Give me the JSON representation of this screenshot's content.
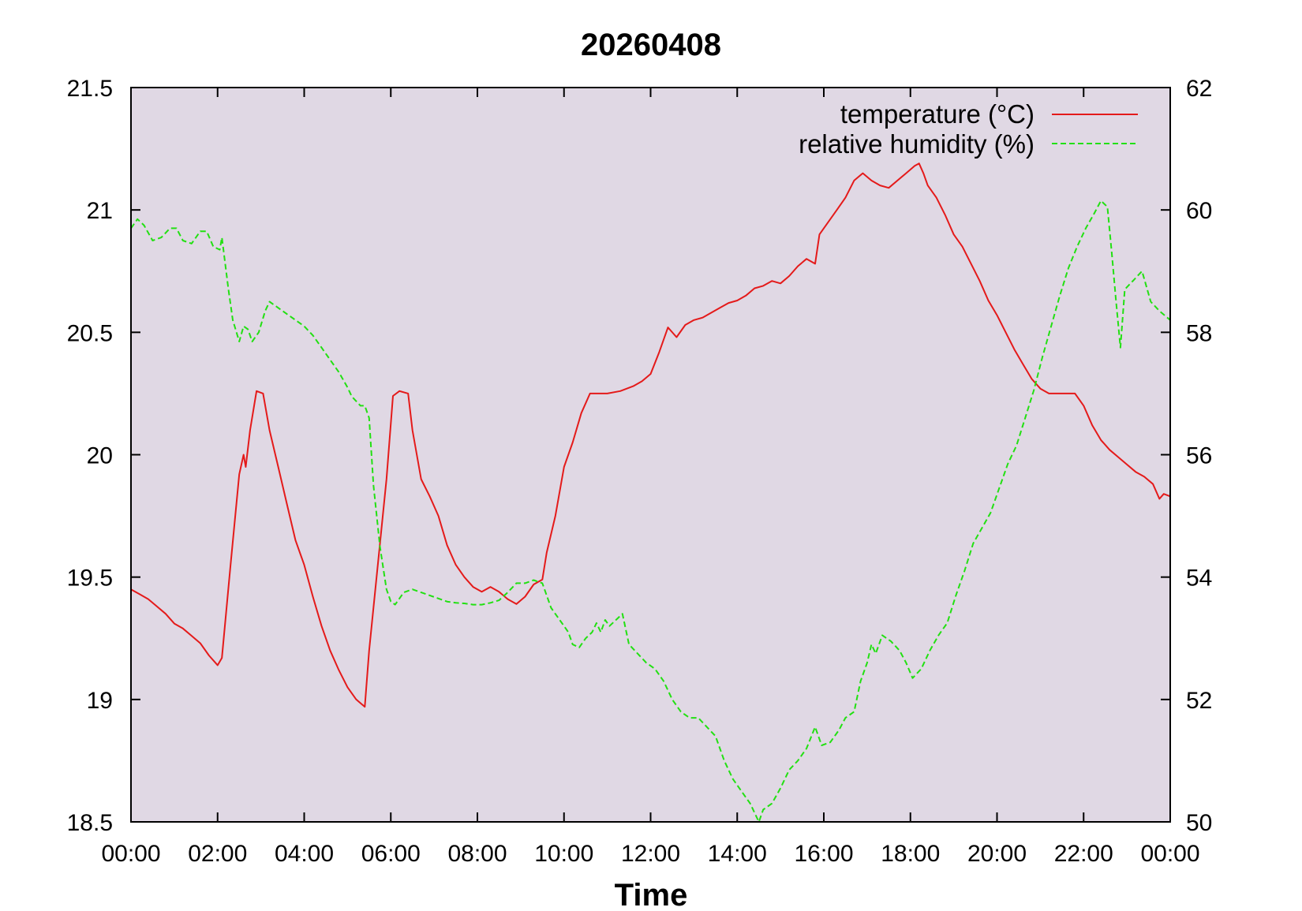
{
  "chart_data": {
    "type": "line",
    "title": "20260408",
    "xlabel": "Time",
    "ylabel": "",
    "y2label": "",
    "x_ticks": [
      "00:00",
      "02:00",
      "04:00",
      "06:00",
      "08:00",
      "10:00",
      "12:00",
      "14:00",
      "16:00",
      "18:00",
      "20:00",
      "22:00",
      "00:00"
    ],
    "xlim_hours": [
      0,
      24
    ],
    "ylim": [
      18.5,
      21.5
    ],
    "y_ticks": [
      "18.5",
      "19",
      "19.5",
      "20",
      "20.5",
      "21",
      "21.5"
    ],
    "y2lim": [
      50,
      62
    ],
    "y2_ticks": [
      "50",
      "52",
      "54",
      "56",
      "58",
      "60",
      "62"
    ],
    "grid": false,
    "legend_position": "top-right",
    "plot_background": "#e0d8e4",
    "series": [
      {
        "name": "temperature (°C)",
        "axis": "left",
        "color": "#e41a1a",
        "style": "solid",
        "points": [
          [
            0.0,
            19.45
          ],
          [
            0.2,
            19.43
          ],
          [
            0.4,
            19.41
          ],
          [
            0.6,
            19.38
          ],
          [
            0.8,
            19.35
          ],
          [
            1.0,
            19.31
          ],
          [
            1.2,
            19.29
          ],
          [
            1.4,
            19.26
          ],
          [
            1.6,
            19.23
          ],
          [
            1.8,
            19.18
          ],
          [
            2.0,
            19.14
          ],
          [
            2.1,
            19.17
          ],
          [
            2.3,
            19.55
          ],
          [
            2.5,
            19.92
          ],
          [
            2.6,
            20.0
          ],
          [
            2.65,
            19.95
          ],
          [
            2.75,
            20.1
          ],
          [
            2.9,
            20.26
          ],
          [
            3.05,
            20.25
          ],
          [
            3.2,
            20.1
          ],
          [
            3.4,
            19.95
          ],
          [
            3.6,
            19.8
          ],
          [
            3.8,
            19.65
          ],
          [
            4.0,
            19.55
          ],
          [
            4.2,
            19.42
          ],
          [
            4.4,
            19.3
          ],
          [
            4.6,
            19.2
          ],
          [
            4.8,
            19.12
          ],
          [
            5.0,
            19.05
          ],
          [
            5.2,
            19.0
          ],
          [
            5.4,
            18.97
          ],
          [
            5.5,
            19.2
          ],
          [
            5.7,
            19.55
          ],
          [
            5.9,
            19.9
          ],
          [
            6.05,
            20.24
          ],
          [
            6.2,
            20.26
          ],
          [
            6.4,
            20.25
          ],
          [
            6.5,
            20.1
          ],
          [
            6.7,
            19.9
          ],
          [
            6.9,
            19.83
          ],
          [
            7.1,
            19.75
          ],
          [
            7.3,
            19.63
          ],
          [
            7.5,
            19.55
          ],
          [
            7.7,
            19.5
          ],
          [
            7.9,
            19.46
          ],
          [
            8.1,
            19.44
          ],
          [
            8.3,
            19.46
          ],
          [
            8.5,
            19.44
          ],
          [
            8.7,
            19.41
          ],
          [
            8.9,
            19.39
          ],
          [
            9.1,
            19.42
          ],
          [
            9.3,
            19.47
          ],
          [
            9.5,
            19.49
          ],
          [
            9.6,
            19.6
          ],
          [
            9.8,
            19.75
          ],
          [
            10.0,
            19.95
          ],
          [
            10.2,
            20.05
          ],
          [
            10.4,
            20.17
          ],
          [
            10.6,
            20.25
          ],
          [
            10.8,
            20.25
          ],
          [
            11.0,
            20.25
          ],
          [
            11.3,
            20.26
          ],
          [
            11.6,
            20.28
          ],
          [
            11.8,
            20.3
          ],
          [
            12.0,
            20.33
          ],
          [
            12.2,
            20.42
          ],
          [
            12.4,
            20.52
          ],
          [
            12.6,
            20.48
          ],
          [
            12.8,
            20.53
          ],
          [
            13.0,
            20.55
          ],
          [
            13.2,
            20.56
          ],
          [
            13.4,
            20.58
          ],
          [
            13.6,
            20.6
          ],
          [
            13.8,
            20.62
          ],
          [
            14.0,
            20.63
          ],
          [
            14.2,
            20.65
          ],
          [
            14.4,
            20.68
          ],
          [
            14.6,
            20.69
          ],
          [
            14.8,
            20.71
          ],
          [
            15.0,
            20.7
          ],
          [
            15.2,
            20.73
          ],
          [
            15.4,
            20.77
          ],
          [
            15.6,
            20.8
          ],
          [
            15.8,
            20.78
          ],
          [
            15.9,
            20.9
          ],
          [
            16.1,
            20.95
          ],
          [
            16.3,
            21.0
          ],
          [
            16.5,
            21.05
          ],
          [
            16.7,
            21.12
          ],
          [
            16.9,
            21.15
          ],
          [
            17.1,
            21.12
          ],
          [
            17.3,
            21.1
          ],
          [
            17.5,
            21.09
          ],
          [
            17.7,
            21.12
          ],
          [
            17.9,
            21.15
          ],
          [
            18.1,
            21.18
          ],
          [
            18.2,
            21.19
          ],
          [
            18.3,
            21.15
          ],
          [
            18.4,
            21.1
          ],
          [
            18.6,
            21.05
          ],
          [
            18.8,
            20.98
          ],
          [
            19.0,
            20.9
          ],
          [
            19.2,
            20.85
          ],
          [
            19.4,
            20.78
          ],
          [
            19.6,
            20.71
          ],
          [
            19.8,
            20.63
          ],
          [
            20.0,
            20.57
          ],
          [
            20.2,
            20.5
          ],
          [
            20.4,
            20.43
          ],
          [
            20.6,
            20.37
          ],
          [
            20.8,
            20.31
          ],
          [
            21.0,
            20.27
          ],
          [
            21.2,
            20.25
          ],
          [
            21.5,
            20.25
          ],
          [
            21.8,
            20.25
          ],
          [
            22.0,
            20.2
          ],
          [
            22.2,
            20.12
          ],
          [
            22.4,
            20.06
          ],
          [
            22.6,
            20.02
          ],
          [
            22.8,
            19.99
          ],
          [
            23.0,
            19.96
          ],
          [
            23.2,
            19.93
          ],
          [
            23.4,
            19.91
          ],
          [
            23.6,
            19.88
          ],
          [
            23.75,
            19.82
          ],
          [
            23.85,
            19.84
          ],
          [
            24.0,
            19.83
          ]
        ]
      },
      {
        "name": "relative humidity (%)",
        "axis": "right",
        "color": "#22e012",
        "style": "dashed",
        "points": [
          [
            0.0,
            59.7
          ],
          [
            0.15,
            59.85
          ],
          [
            0.3,
            59.75
          ],
          [
            0.5,
            59.5
          ],
          [
            0.7,
            59.55
          ],
          [
            0.9,
            59.7
          ],
          [
            1.05,
            59.7
          ],
          [
            1.2,
            59.5
          ],
          [
            1.4,
            59.45
          ],
          [
            1.6,
            59.65
          ],
          [
            1.75,
            59.65
          ],
          [
            1.9,
            59.4
          ],
          [
            2.05,
            59.35
          ],
          [
            2.1,
            59.55
          ],
          [
            2.25,
            58.7
          ],
          [
            2.35,
            58.2
          ],
          [
            2.5,
            57.85
          ],
          [
            2.6,
            58.1
          ],
          [
            2.7,
            58.05
          ],
          [
            2.8,
            57.85
          ],
          [
            2.95,
            58.0
          ],
          [
            3.1,
            58.35
          ],
          [
            3.2,
            58.5
          ],
          [
            3.4,
            58.4
          ],
          [
            3.6,
            58.3
          ],
          [
            3.8,
            58.2
          ],
          [
            4.0,
            58.1
          ],
          [
            4.2,
            57.95
          ],
          [
            4.4,
            57.75
          ],
          [
            4.6,
            57.55
          ],
          [
            4.8,
            57.35
          ],
          [
            5.0,
            57.1
          ],
          [
            5.1,
            56.95
          ],
          [
            5.3,
            56.8
          ],
          [
            5.4,
            56.8
          ],
          [
            5.5,
            56.6
          ],
          [
            5.6,
            55.5
          ],
          [
            5.75,
            54.5
          ],
          [
            5.9,
            53.8
          ],
          [
            6.0,
            53.6
          ],
          [
            6.1,
            53.55
          ],
          [
            6.3,
            53.75
          ],
          [
            6.5,
            53.8
          ],
          [
            6.7,
            53.75
          ],
          [
            6.9,
            53.7
          ],
          [
            7.1,
            53.65
          ],
          [
            7.3,
            53.6
          ],
          [
            7.5,
            53.58
          ],
          [
            7.7,
            53.57
          ],
          [
            7.9,
            53.55
          ],
          [
            8.1,
            53.55
          ],
          [
            8.3,
            53.58
          ],
          [
            8.5,
            53.62
          ],
          [
            8.7,
            53.75
          ],
          [
            8.9,
            53.9
          ],
          [
            9.1,
            53.9
          ],
          [
            9.3,
            53.95
          ],
          [
            9.5,
            53.9
          ],
          [
            9.6,
            53.7
          ],
          [
            9.7,
            53.5
          ],
          [
            9.85,
            53.35
          ],
          [
            10.0,
            53.2
          ],
          [
            10.1,
            53.1
          ],
          [
            10.2,
            52.9
          ],
          [
            10.35,
            52.85
          ],
          [
            10.5,
            53.0
          ],
          [
            10.65,
            53.1
          ],
          [
            10.75,
            53.25
          ],
          [
            10.85,
            53.1
          ],
          [
            10.95,
            53.3
          ],
          [
            11.05,
            53.2
          ],
          [
            11.2,
            53.3
          ],
          [
            11.35,
            53.4
          ],
          [
            11.5,
            52.9
          ],
          [
            11.7,
            52.75
          ],
          [
            11.9,
            52.6
          ],
          [
            12.1,
            52.5
          ],
          [
            12.3,
            52.3
          ],
          [
            12.5,
            52.0
          ],
          [
            12.7,
            51.8
          ],
          [
            12.9,
            51.7
          ],
          [
            13.1,
            51.7
          ],
          [
            13.3,
            51.55
          ],
          [
            13.5,
            51.4
          ],
          [
            13.7,
            51.0
          ],
          [
            13.9,
            50.7
          ],
          [
            14.1,
            50.5
          ],
          [
            14.3,
            50.3
          ],
          [
            14.5,
            50.0
          ],
          [
            14.6,
            50.2
          ],
          [
            14.8,
            50.3
          ],
          [
            15.0,
            50.55
          ],
          [
            15.2,
            50.85
          ],
          [
            15.4,
            51.0
          ],
          [
            15.6,
            51.2
          ],
          [
            15.8,
            51.55
          ],
          [
            15.95,
            51.25
          ],
          [
            16.15,
            51.3
          ],
          [
            16.35,
            51.5
          ],
          [
            16.5,
            51.7
          ],
          [
            16.7,
            51.8
          ],
          [
            16.85,
            52.3
          ],
          [
            17.0,
            52.6
          ],
          [
            17.1,
            52.9
          ],
          [
            17.2,
            52.75
          ],
          [
            17.35,
            53.05
          ],
          [
            17.55,
            52.95
          ],
          [
            17.75,
            52.8
          ],
          [
            17.9,
            52.6
          ],
          [
            18.05,
            52.35
          ],
          [
            18.25,
            52.5
          ],
          [
            18.45,
            52.8
          ],
          [
            18.65,
            53.05
          ],
          [
            18.85,
            53.25
          ],
          [
            19.05,
            53.7
          ],
          [
            19.25,
            54.1
          ],
          [
            19.45,
            54.55
          ],
          [
            19.65,
            54.8
          ],
          [
            19.85,
            55.05
          ],
          [
            20.05,
            55.45
          ],
          [
            20.25,
            55.85
          ],
          [
            20.45,
            56.15
          ],
          [
            20.65,
            56.6
          ],
          [
            20.85,
            57.05
          ],
          [
            21.05,
            57.6
          ],
          [
            21.25,
            58.1
          ],
          [
            21.45,
            58.6
          ],
          [
            21.65,
            59.05
          ],
          [
            21.85,
            59.4
          ],
          [
            22.05,
            59.7
          ],
          [
            22.25,
            59.95
          ],
          [
            22.4,
            60.15
          ],
          [
            22.55,
            60.05
          ],
          [
            22.65,
            59.3
          ],
          [
            22.75,
            58.5
          ],
          [
            22.85,
            57.75
          ],
          [
            22.95,
            58.7
          ],
          [
            23.15,
            58.85
          ],
          [
            23.35,
            59.0
          ],
          [
            23.55,
            58.5
          ],
          [
            23.75,
            58.35
          ],
          [
            24.0,
            58.2
          ]
        ]
      }
    ]
  }
}
